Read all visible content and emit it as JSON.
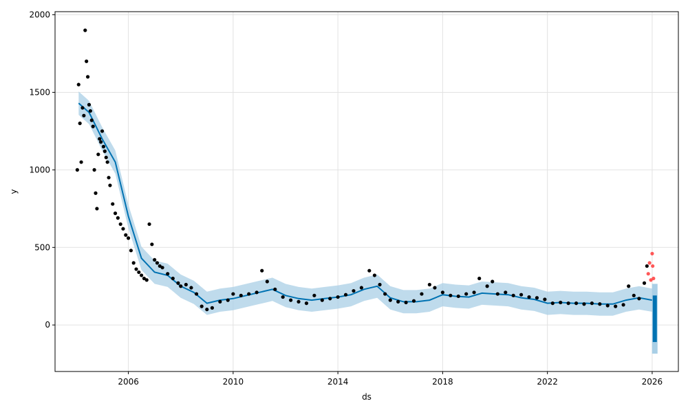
{
  "chart_data": {
    "type": "scatter",
    "title": "",
    "xlabel": "ds",
    "ylabel": "y",
    "xlim": [
      2003.2,
      2027.0
    ],
    "ylim": [
      -300,
      2020
    ],
    "x_ticks": [
      2006,
      2010,
      2014,
      2018,
      2022,
      2026
    ],
    "y_ticks": [
      0,
      500,
      1000,
      1500,
      2000
    ],
    "grid": true,
    "legend": "none",
    "colors": {
      "observed": "#000000",
      "recent": "#ff3b3b",
      "forecast_line": "#0072B2",
      "interval": "#a9cfe6",
      "grid": "#e2e2e2"
    },
    "series": [
      {
        "kind": "forecast_line",
        "x": [
          2004.1,
          2004.5,
          2005.0,
          2005.5,
          2006.0,
          2006.5,
          2007.0,
          2007.5,
          2008.0,
          2008.5,
          2009.0,
          2009.5,
          2010.0,
          2010.5,
          2011.0,
          2011.5,
          2012.0,
          2012.5,
          2013.0,
          2013.5,
          2014.0,
          2014.5,
          2015.0,
          2015.5,
          2016.0,
          2016.5,
          2017.0,
          2017.5,
          2018.0,
          2018.5,
          2019.0,
          2019.5,
          2020.0,
          2020.5,
          2021.0,
          2021.5,
          2022.0,
          2022.5,
          2023.0,
          2023.5,
          2024.0,
          2024.5,
          2025.0,
          2025.5,
          2026.0
        ],
        "y": [
          1430,
          1370,
          1200,
          1050,
          700,
          430,
          340,
          320,
          250,
          210,
          140,
          160,
          170,
          190,
          210,
          230,
          190,
          170,
          160,
          170,
          180,
          195,
          230,
          250,
          175,
          150,
          150,
          160,
          195,
          185,
          180,
          205,
          200,
          195,
          175,
          165,
          140,
          145,
          140,
          140,
          135,
          135,
          160,
          175,
          160
        ]
      },
      {
        "kind": "observed",
        "x": [
          2004.05,
          2004.1,
          2004.15,
          2004.2,
          2004.25,
          2004.3,
          2004.35,
          2004.4,
          2004.45,
          2004.5,
          2004.55,
          2004.6,
          2004.65,
          2004.7,
          2004.75,
          2004.8,
          2004.85,
          2004.9,
          2004.95,
          2005.0,
          2005.05,
          2005.1,
          2005.15,
          2005.2,
          2005.25,
          2005.3,
          2005.4,
          2005.5,
          2005.6,
          2005.7,
          2005.8,
          2005.9,
          2006.0,
          2006.1,
          2006.2,
          2006.3,
          2006.4,
          2006.5,
          2006.6,
          2006.7,
          2006.8,
          2006.9,
          2007.0,
          2007.1,
          2007.2,
          2007.3,
          2007.5,
          2007.7,
          2007.9,
          2008.0,
          2008.2,
          2008.4,
          2008.6,
          2008.8,
          2009.0,
          2009.2,
          2009.5,
          2009.8,
          2010.0,
          2010.3,
          2010.6,
          2010.9,
          2011.1,
          2011.3,
          2011.6,
          2011.9,
          2012.2,
          2012.5,
          2012.8,
          2013.1,
          2013.4,
          2013.7,
          2014.0,
          2014.3,
          2014.6,
          2014.9,
          2015.2,
          2015.4,
          2015.6,
          2015.8,
          2016.0,
          2016.3,
          2016.6,
          2016.9,
          2017.2,
          2017.5,
          2017.7,
          2018.0,
          2018.3,
          2018.6,
          2018.9,
          2019.2,
          2019.4,
          2019.7,
          2019.9,
          2020.1,
          2020.4,
          2020.7,
          2021.0,
          2021.3,
          2021.6,
          2021.9,
          2022.2,
          2022.5,
          2022.8,
          2023.1,
          2023.4,
          2023.7,
          2024.0,
          2024.3,
          2024.6,
          2024.9,
          2025.1,
          2025.3,
          2025.5,
          2025.7,
          2025.8
        ],
        "y": [
          1000,
          1550,
          1300,
          1050,
          1400,
          1350,
          1900,
          1700,
          1600,
          1420,
          1380,
          1320,
          1280,
          1000,
          850,
          750,
          1100,
          1200,
          1180,
          1250,
          1150,
          1120,
          1080,
          1050,
          950,
          900,
          780,
          720,
          690,
          650,
          620,
          580,
          560,
          480,
          400,
          360,
          340,
          320,
          300,
          290,
          650,
          520,
          420,
          400,
          380,
          370,
          330,
          300,
          270,
          250,
          260,
          240,
          200,
          120,
          100,
          110,
          150,
          160,
          200,
          190,
          200,
          210,
          350,
          280,
          230,
          180,
          160,
          150,
          140,
          190,
          160,
          170,
          180,
          195,
          220,
          240,
          350,
          320,
          260,
          200,
          160,
          150,
          145,
          155,
          200,
          260,
          240,
          210,
          190,
          185,
          200,
          210,
          300,
          250,
          280,
          200,
          210,
          190,
          195,
          180,
          175,
          165,
          140,
          145,
          140,
          140,
          135,
          140,
          135,
          125,
          120,
          130,
          250,
          190,
          170,
          270,
          380
        ]
      },
      {
        "kind": "recent",
        "x": [
          2025.85,
          2025.9,
          2025.95,
          2026.0,
          2026.02,
          2026.05
        ],
        "y": [
          330,
          400,
          290,
          460,
          380,
          300
        ]
      }
    ],
    "interval_half_width": 75,
    "forecast_segment": {
      "x": 2026.1,
      "y_low": -110,
      "y_high": 190
    }
  }
}
